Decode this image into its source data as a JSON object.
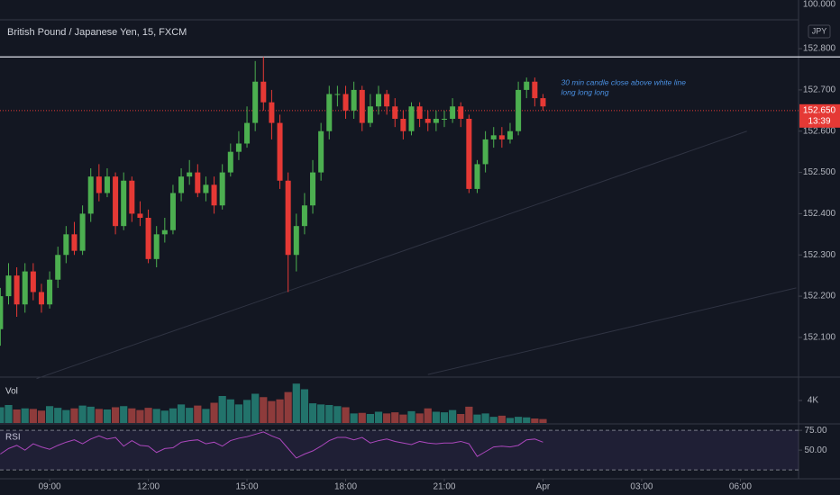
{
  "chart_data": {
    "type": "candlestick",
    "title": "British Pound / Japanese Yen, 15, FXCM",
    "currency": "JPY",
    "top_label": "100.000",
    "up_color": "#4caf50",
    "down_color": "#e53935",
    "x": [
      7.5,
      7.75,
      8,
      8.25,
      8.5,
      8.75,
      9,
      9.25,
      9.5,
      9.75,
      10,
      10.25,
      10.5,
      10.75,
      11,
      11.25,
      11.5,
      11.75,
      12,
      12.25,
      12.5,
      12.75,
      13,
      13.25,
      13.5,
      13.75,
      14,
      14.25,
      14.5,
      14.75,
      15,
      15.25,
      15.5,
      15.75,
      16,
      16.25,
      16.5,
      16.75,
      17,
      17.25,
      17.5,
      17.75,
      18,
      18.25,
      18.5,
      18.75,
      19,
      19.25,
      19.5,
      19.75,
      20,
      20.25,
      20.5,
      20.75,
      21,
      21.25,
      21.5,
      21.75,
      22,
      22.25,
      22.5,
      22.75,
      23,
      23.25,
      23.5,
      23.75,
      24
    ],
    "open": [
      152.12,
      152.2,
      152.25,
      152.18,
      152.26,
      152.21,
      152.18,
      152.24,
      152.3,
      152.35,
      152.31,
      152.4,
      152.49,
      152.45,
      152.49,
      152.37,
      152.48,
      152.4,
      152.39,
      152.29,
      152.35,
      152.36,
      152.45,
      152.49,
      152.5,
      152.45,
      152.47,
      152.42,
      152.5,
      152.55,
      152.57,
      152.62,
      152.72,
      152.67,
      152.62,
      152.48,
      152.3,
      152.37,
      152.42,
      152.5,
      152.6,
      152.69,
      152.69,
      152.65,
      152.7,
      152.62,
      152.66,
      152.69,
      152.66,
      152.63,
      152.6,
      152.66,
      152.63,
      152.62,
      152.63,
      152.63,
      152.66,
      152.63,
      152.46,
      152.52,
      152.58,
      152.59,
      152.58,
      152.6,
      152.7,
      152.72,
      152.68
    ],
    "high": [
      152.22,
      152.28,
      152.27,
      152.28,
      152.28,
      152.23,
      152.26,
      152.32,
      152.37,
      152.38,
      152.42,
      152.51,
      152.52,
      152.51,
      152.5,
      152.5,
      152.49,
      152.43,
      152.41,
      152.37,
      152.39,
      152.47,
      152.51,
      152.53,
      152.52,
      152.49,
      152.49,
      152.52,
      152.57,
      152.6,
      152.66,
      152.77,
      152.78,
      152.7,
      152.64,
      152.5,
      152.4,
      152.45,
      152.53,
      152.62,
      152.71,
      152.71,
      152.71,
      152.72,
      152.71,
      152.69,
      152.71,
      152.7,
      152.68,
      152.65,
      152.67,
      152.67,
      152.65,
      152.65,
      152.65,
      152.68,
      152.67,
      152.64,
      152.53,
      152.6,
      152.61,
      152.61,
      152.62,
      152.72,
      152.73,
      152.73,
      152.69
    ],
    "low": [
      152.08,
      152.18,
      152.15,
      152.16,
      152.19,
      152.16,
      152.17,
      152.22,
      152.28,
      152.3,
      152.3,
      152.38,
      152.43,
      152.44,
      152.35,
      152.36,
      152.38,
      152.37,
      152.28,
      152.27,
      152.33,
      152.35,
      152.43,
      152.47,
      152.44,
      152.43,
      152.4,
      152.41,
      152.49,
      152.53,
      152.56,
      152.6,
      152.65,
      152.58,
      152.46,
      152.21,
      152.26,
      152.35,
      152.4,
      152.48,
      152.58,
      152.66,
      152.63,
      152.63,
      152.6,
      152.61,
      152.64,
      152.64,
      152.61,
      152.58,
      152.59,
      152.61,
      152.6,
      152.6,
      152.61,
      152.62,
      152.61,
      152.45,
      152.45,
      152.5,
      152.56,
      152.56,
      152.57,
      152.59,
      152.68,
      152.66,
      152.65
    ],
    "close": [
      152.2,
      152.25,
      152.18,
      152.26,
      152.21,
      152.18,
      152.24,
      152.3,
      152.35,
      152.31,
      152.4,
      152.49,
      152.45,
      152.49,
      152.37,
      152.48,
      152.4,
      152.39,
      152.29,
      152.35,
      152.36,
      152.45,
      152.49,
      152.5,
      152.45,
      152.47,
      152.42,
      152.5,
      152.55,
      152.57,
      152.62,
      152.72,
      152.67,
      152.62,
      152.48,
      152.3,
      152.37,
      152.42,
      152.5,
      152.6,
      152.69,
      152.69,
      152.65,
      152.7,
      152.62,
      152.66,
      152.69,
      152.66,
      152.63,
      152.6,
      152.66,
      152.63,
      152.62,
      152.63,
      152.63,
      152.66,
      152.63,
      152.46,
      152.52,
      152.58,
      152.59,
      152.58,
      152.6,
      152.7,
      152.72,
      152.68,
      152.66
    ],
    "xlim": [
      7.49,
      31.77
    ],
    "xticks": [
      {
        "value": 9,
        "label": "09:00"
      },
      {
        "value": 12,
        "label": "12:00"
      },
      {
        "value": 15,
        "label": "15:00"
      },
      {
        "value": 18,
        "label": "18:00"
      },
      {
        "value": 21,
        "label": "21:00"
      },
      {
        "value": 24,
        "label": "Apr"
      },
      {
        "value": 27,
        "label": "03:00"
      },
      {
        "value": 30,
        "label": "06:00"
      }
    ],
    "ylim": [
      152.006,
      152.87
    ],
    "yticks": [
      {
        "value": 152.1,
        "label": "152.100"
      },
      {
        "value": 152.2,
        "label": "152.200"
      },
      {
        "value": 152.3,
        "label": "152.300"
      },
      {
        "value": 152.4,
        "label": "152.400"
      },
      {
        "value": 152.5,
        "label": "152.500"
      },
      {
        "value": 152.6,
        "label": "152.600"
      },
      {
        "value": 152.7,
        "label": "152.700"
      },
      {
        "value": 152.8,
        "label": "152.800"
      }
    ],
    "last_price": {
      "value": 152.65,
      "label": "152.650",
      "countdown": "13:39",
      "color": "#e53935"
    },
    "hline": {
      "value": 152.78,
      "color": "#e0e3eb"
    },
    "trendlines": [
      {
        "x": [
          8.6,
          30.2
        ],
        "y": [
          152.0,
          152.6
        ]
      },
      {
        "x": [
          20.5,
          31.7
        ],
        "y": [
          152.01,
          152.22
        ]
      }
    ],
    "annotation": {
      "lines": [
        "30 min candle close above white line",
        "long long long"
      ],
      "x": 24.55,
      "y": 152.717,
      "color": "#4a90e2"
    },
    "volume": {
      "type": "bar",
      "label": "Vol",
      "up_color": "#22736b",
      "down_color": "#8e3b3b",
      "values": [
        2800,
        3200,
        2400,
        2600,
        2500,
        2200,
        3000,
        2700,
        2300,
        2600,
        3100,
        2900,
        2500,
        2400,
        2800,
        3000,
        2600,
        2300,
        2700,
        2500,
        2200,
        2600,
        3300,
        2700,
        3100,
        2500,
        3600,
        4800,
        4200,
        3300,
        4100,
        5200,
        4600,
        3900,
        4200,
        5500,
        7000,
        6000,
        3500,
        3300,
        3200,
        3000,
        2800,
        1700,
        1800,
        1600,
        2000,
        1700,
        1900,
        1500,
        2100,
        1700,
        2600,
        2000,
        1900,
        2300,
        1600,
        2900,
        1500,
        1700,
        1100,
        1300,
        900,
        1100,
        1000,
        800,
        700
      ],
      "ylim": [
        0,
        8000
      ],
      "yticks": [
        {
          "value": 4000,
          "label": "4K"
        }
      ]
    },
    "rsi": {
      "type": "line",
      "label": "RSI",
      "color": "#ab47bc",
      "values": [
        45,
        52,
        56,
        50,
        58,
        54,
        51,
        56,
        60,
        63,
        58,
        64,
        68,
        64,
        66,
        55,
        62,
        56,
        55,
        47,
        52,
        53,
        60,
        62,
        63,
        58,
        60,
        55,
        62,
        65,
        67,
        70,
        73,
        68,
        64,
        52,
        40,
        45,
        49,
        55,
        62,
        66,
        66,
        63,
        66,
        59,
        62,
        64,
        61,
        59,
        57,
        61,
        59,
        58,
        59,
        59,
        61,
        58,
        42,
        48,
        54,
        55,
        54,
        56,
        63,
        64,
        60
      ],
      "ylim": [
        16,
        82
      ],
      "yticks": [
        {
          "value": 75,
          "label": "75.00"
        },
        {
          "value": 50,
          "label": "50.00"
        }
      ],
      "bands": [
        75,
        25
      ]
    }
  }
}
